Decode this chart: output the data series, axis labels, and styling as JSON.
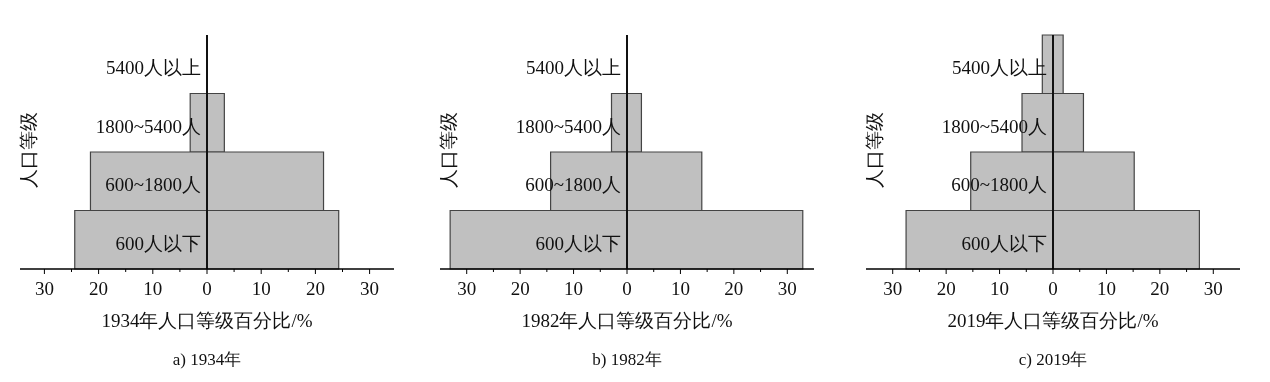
{
  "chart_data": [
    {
      "type": "bar",
      "orientation": "horizontal",
      "title": "a) 1934年",
      "xlabel": "1934年人口等级百分比/%",
      "ylabel": "人口等级",
      "categories": [
        "5400人以上",
        "1800~5400人",
        "600~1800人",
        "600人以下"
      ],
      "series": [
        {
          "color": "#c0c0c0",
          "values": [
            0,
            -3.1,
            -21.5,
            -24.4
          ]
        },
        {
          "color": "#c0c0c0",
          "values": [
            0,
            3.2,
            21.5,
            24.3
          ]
        }
      ],
      "xlim": [
        -34.5,
        34.5
      ],
      "xticks": [
        {
          "value": -30,
          "label": "30"
        },
        {
          "value": -25,
          "label": null
        },
        {
          "value": -20,
          "label": "20"
        },
        {
          "value": -15,
          "label": null
        },
        {
          "value": -10,
          "label": "10"
        },
        {
          "value": -5,
          "label": null
        },
        0,
        {
          "value": 5,
          "label": null
        },
        10,
        {
          "value": 15,
          "label": null
        },
        20,
        {
          "value": 25,
          "label": null
        },
        30
      ],
      "grid": false,
      "stacked": true
    },
    {
      "type": "bar",
      "orientation": "horizontal",
      "title": "b) 1982年",
      "xlabel": "1982年人口等级百分比/%",
      "ylabel": "人口等级",
      "categories": [
        "5400人以上",
        "1800~5400人",
        "600~1800人",
        "600人以下"
      ],
      "series": [
        {
          "color": "#c0c0c0",
          "values": [
            0,
            -2.9,
            -14.3,
            -33.1
          ]
        },
        {
          "color": "#c0c0c0",
          "values": [
            0,
            2.7,
            14.0,
            32.9
          ]
        }
      ],
      "xlim": [
        -35,
        35
      ],
      "xticks": [
        {
          "value": -30,
          "label": "30"
        },
        {
          "value": -25,
          "label": null
        },
        {
          "value": -20,
          "label": "20"
        },
        {
          "value": -15,
          "label": null
        },
        {
          "value": -10,
          "label": "10"
        },
        {
          "value": -5,
          "label": null
        },
        0,
        {
          "value": 5,
          "label": null
        },
        10,
        {
          "value": 15,
          "label": null
        },
        20,
        {
          "value": 25,
          "label": null
        },
        30
      ],
      "grid": false,
      "stacked": true
    },
    {
      "type": "bar",
      "orientation": "horizontal",
      "title": "c) 2019年",
      "xlabel": "2019年人口等级百分比/%",
      "ylabel": "人口等级",
      "categories": [
        "5400人以上",
        "1800~5400人",
        "600~1800人",
        "600人以下"
      ],
      "series": [
        {
          "color": "#c0c0c0",
          "values": [
            -2.0,
            -5.8,
            -15.4,
            -27.5
          ]
        },
        {
          "color": "#c0c0c0",
          "values": [
            1.9,
            5.7,
            15.2,
            27.4
          ]
        }
      ],
      "xlim": [
        -35,
        35
      ],
      "xticks": [
        {
          "value": -30,
          "label": "30"
        },
        {
          "value": -25,
          "label": null
        },
        {
          "value": -20,
          "label": "20"
        },
        {
          "value": -15,
          "label": null
        },
        {
          "value": -10,
          "label": "10"
        },
        {
          "value": -5,
          "label": null
        },
        0,
        {
          "value": 5,
          "label": null
        },
        10,
        {
          "value": 15,
          "label": null
        },
        20,
        {
          "value": 25,
          "label": null
        },
        30
      ],
      "grid": false,
      "stacked": true
    }
  ]
}
